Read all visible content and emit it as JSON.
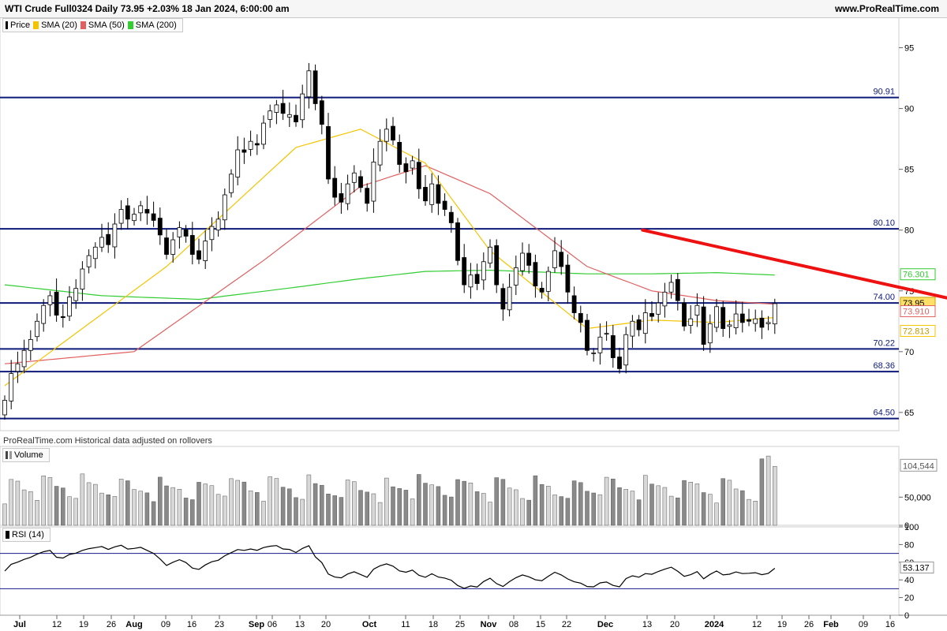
{
  "header": {
    "title": "WTI Crude Full0324 Daily 73.95 +2.03% 18 Jan 2024, 6:00:00 am",
    "site": "www.ProRealTime.com"
  },
  "legend_price": [
    {
      "label": "Price",
      "color": "#000000"
    },
    {
      "label": "SMA (20)",
      "color": "#f5c400"
    },
    {
      "label": "SMA (50)",
      "color": "#e06060"
    },
    {
      "label": "SMA (200)",
      "color": "#33cc33"
    }
  ],
  "legend_volume": {
    "label": "Volume"
  },
  "legend_rsi": {
    "label": "RSI (14)"
  },
  "copyright": "ProRealTime.com Historical data adjusted on rollovers",
  "colors": {
    "hline": "#0d1a7a",
    "trend": "#ee1111",
    "sma20": "#f5c400",
    "sma50": "#e06060",
    "sma200": "#33cc33",
    "candle_up": "#ffffff",
    "candle_down": "#000000",
    "rsi_line": "#000000",
    "rsi_bands": "#1a1a8c"
  },
  "chart_data": [
    {
      "type": "candlestick",
      "title": "WTI Crude Full0324 Daily",
      "ylim": [
        63.5,
        97.5
      ],
      "yticks": [
        65,
        70,
        75,
        80,
        85,
        90,
        95
      ],
      "x_ticks": [
        "Jul",
        "12",
        "19",
        "26",
        "Aug",
        "09",
        "16",
        "23",
        "Sep",
        "06",
        "13",
        "20",
        "Oct",
        "11",
        "18",
        "25",
        "Nov",
        "08",
        "15",
        "22",
        "Dec",
        "13",
        "20",
        "2024",
        "12",
        "19",
        "26",
        "Feb",
        "09",
        "16"
      ],
      "last_price": 73.95,
      "horizontal_levels": [
        90.91,
        80.1,
        74.0,
        70.22,
        68.36,
        64.5
      ],
      "trendline": {
        "from": {
          "date": "2023-11-13",
          "value": 80.0
        },
        "to": {
          "date": "2024-01-24",
          "value": 73.9
        }
      },
      "price_tags": [
        {
          "value": 76.301,
          "label": "76.301",
          "series": "SMA (200)"
        },
        {
          "value": 73.95,
          "label": "73.95",
          "series": "Price"
        },
        {
          "value": 73.91,
          "label": "73.910",
          "series": "SMA (50)"
        },
        {
          "value": 72.813,
          "label": "72.813",
          "series": "SMA (20)"
        }
      ],
      "close_series": [
        66.0,
        68.2,
        69.0,
        70.1,
        71.0,
        72.5,
        73.8,
        74.6,
        73.0,
        72.8,
        74.5,
        75.2,
        76.8,
        77.9,
        78.6,
        79.4,
        78.8,
        80.5,
        81.7,
        80.9,
        81.3,
        82.0,
        81.4,
        80.8,
        79.6,
        78.0,
        79.2,
        80.2,
        79.5,
        78.0,
        77.6,
        79.1,
        80.3,
        80.9,
        82.9,
        84.6,
        86.6,
        86.4,
        87.3,
        87.0,
        88.8,
        89.8,
        90.3,
        89.6,
        89.5,
        88.9,
        91.2,
        93.1,
        90.4,
        88.7,
        84.2,
        82.7,
        82.3,
        83.8,
        84.7,
        83.5,
        82.2,
        85.6,
        87.3,
        88.3,
        87.4,
        85.4,
        84.8,
        85.7,
        83.4,
        82.4,
        83.8,
        82.2,
        81.7,
        80.6,
        77.5,
        75.5,
        76.3,
        75.6,
        77.4,
        78.6,
        75.5,
        73.5,
        75.3,
        76.9,
        78.1,
        77.1,
        75.4,
        74.9,
        76.6,
        78.3,
        77.0,
        74.9,
        73.2,
        72.4,
        70.1,
        69.9,
        71.2,
        71.5,
        69.5,
        68.6,
        71.4,
        72.5,
        71.8,
        73.2,
        72.9,
        74.0,
        74.9,
        75.7,
        74.2,
        72.1,
        72.7,
        73.8,
        70.6,
        72.3,
        73.7,
        71.9,
        72.2,
        73.1,
        72.4,
        72.5,
        72.7,
        72.0,
        72.4,
        73.95
      ],
      "sma20_anchors": [
        [
          0,
          67.2
        ],
        [
          25,
          77.0
        ],
        [
          45,
          86.8
        ],
        [
          55,
          88.3
        ],
        [
          65,
          85.5
        ],
        [
          75,
          78.3
        ],
        [
          90,
          71.9
        ],
        [
          100,
          72.6
        ],
        [
          110,
          72.4
        ],
        [
          119,
          72.813
        ]
      ],
      "sma50_anchors": [
        [
          0,
          69.0
        ],
        [
          20,
          70.0
        ],
        [
          40,
          77.5
        ],
        [
          55,
          83.6
        ],
        [
          65,
          85.3
        ],
        [
          75,
          83.0
        ],
        [
          90,
          77.0
        ],
        [
          100,
          75.0
        ],
        [
          110,
          74.2
        ],
        [
          119,
          73.91
        ]
      ],
      "sma200_anchors": [
        [
          0,
          75.5
        ],
        [
          15,
          74.6
        ],
        [
          30,
          74.3
        ],
        [
          45,
          75.3
        ],
        [
          55,
          76.0
        ],
        [
          65,
          76.6
        ],
        [
          75,
          76.7
        ],
        [
          90,
          76.4
        ],
        [
          100,
          76.4
        ],
        [
          110,
          76.5
        ],
        [
          119,
          76.301
        ]
      ]
    },
    {
      "type": "bar",
      "title": "Volume",
      "ylim": [
        0,
        140000
      ],
      "yticks": [
        0,
        50000
      ],
      "ytick_labels": [
        "0",
        "50,000"
      ],
      "last_value": 104544,
      "last_label": "104,544"
    },
    {
      "type": "line",
      "title": "RSI (14)",
      "ylim": [
        0,
        100
      ],
      "yticks": [
        0,
        20,
        40,
        60,
        80,
        100
      ],
      "bands": [
        70,
        30
      ],
      "last_value": 53.137,
      "last_label": "53.137"
    }
  ]
}
